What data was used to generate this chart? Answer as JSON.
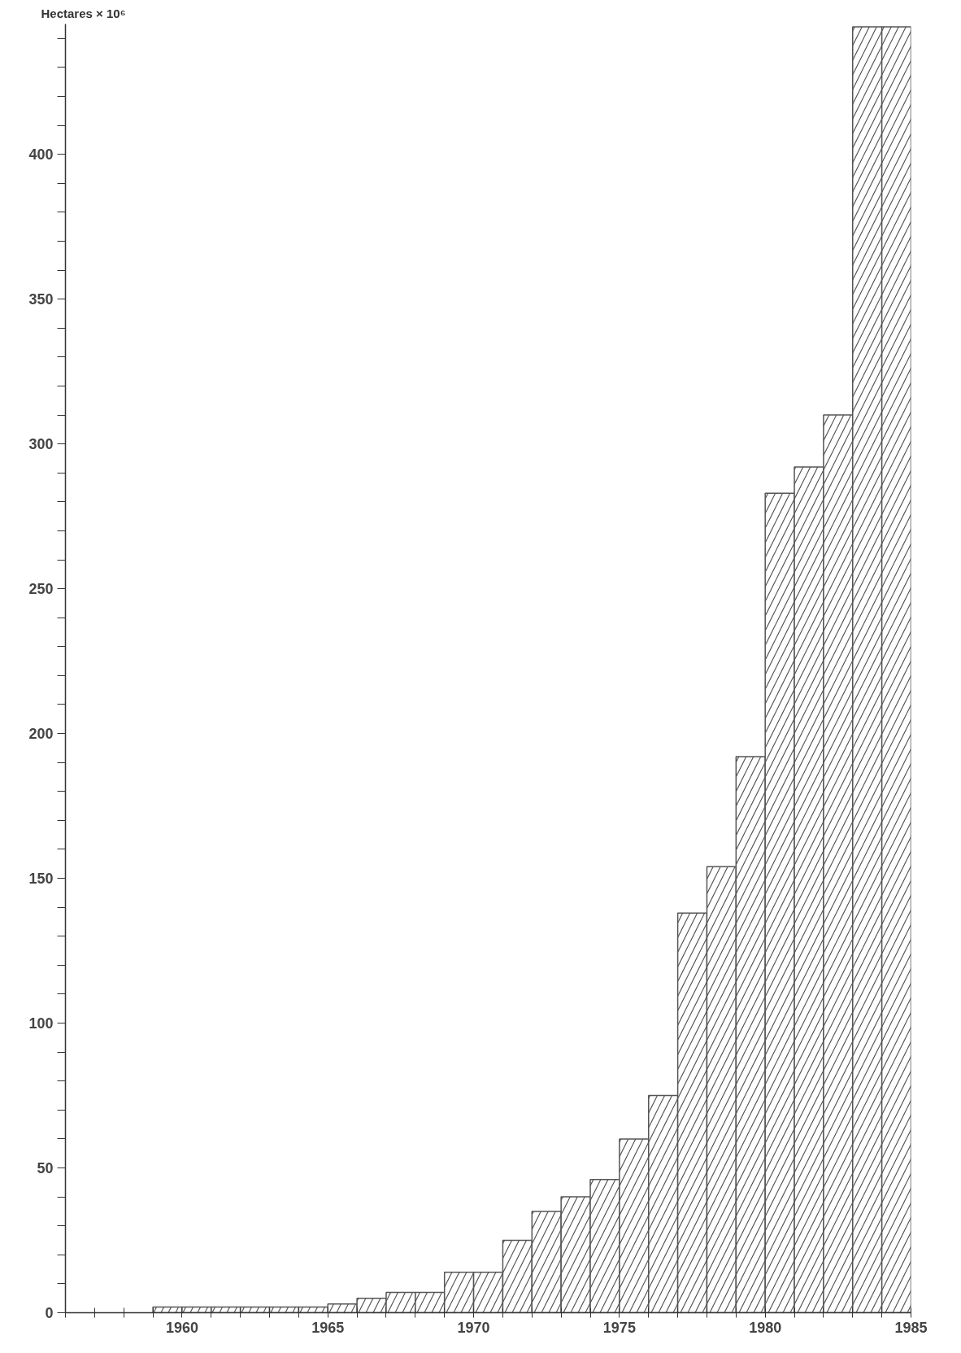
{
  "chart_data": {
    "type": "histogram",
    "ylabel": "Hectares × 10⁶",
    "bins": [
      1959,
      1960,
      1961,
      1962,
      1963,
      1964,
      1965,
      1966,
      1967,
      1968,
      1969,
      1970,
      1971,
      1972,
      1973,
      1974,
      1975,
      1976,
      1977,
      1978,
      1979,
      1980,
      1981,
      1982,
      1983,
      1984,
      1985
    ],
    "values": [
      2,
      2,
      2,
      2,
      2,
      2,
      3,
      5,
      7,
      7,
      14,
      14,
      25,
      35,
      40,
      46,
      60,
      75,
      138,
      154,
      192,
      283,
      292,
      310,
      444,
      444
    ],
    "color": "#555555",
    "xlim": [
      1956,
      1985
    ],
    "xticks": [
      {
        "value": 1956,
        "label": null
      },
      {
        "value": 1957,
        "label": null
      },
      {
        "value": 1958,
        "label": null
      },
      {
        "value": 1959,
        "label": null
      },
      1960,
      {
        "value": 1961,
        "label": null
      },
      {
        "value": 1962,
        "label": null
      },
      {
        "value": 1963,
        "label": null
      },
      {
        "value": 1964,
        "label": null
      },
      1965,
      {
        "value": 1966,
        "label": null
      },
      {
        "value": 1967,
        "label": null
      },
      {
        "value": 1968,
        "label": null
      },
      {
        "value": 1969,
        "label": null
      },
      1970,
      {
        "value": 1971,
        "label": null
      },
      {
        "value": 1972,
        "label": null
      },
      {
        "value": 1973,
        "label": null
      },
      {
        "value": 1974,
        "label": null
      },
      1975,
      {
        "value": 1976,
        "label": null
      },
      {
        "value": 1977,
        "label": null
      },
      {
        "value": 1978,
        "label": null
      },
      {
        "value": 1979,
        "label": null
      },
      1980,
      {
        "value": 1981,
        "label": null
      },
      {
        "value": 1982,
        "label": null
      },
      {
        "value": 1983,
        "label": null
      },
      {
        "value": 1984,
        "label": null
      },
      1985
    ],
    "ylim": [
      0,
      445
    ],
    "yticks": [
      0,
      {
        "value": 10,
        "label": null
      },
      {
        "value": 20,
        "label": null
      },
      {
        "value": 30,
        "label": null
      },
      {
        "value": 40,
        "label": null
      },
      50,
      {
        "value": 60,
        "label": null
      },
      {
        "value": 70,
        "label": null
      },
      {
        "value": 80,
        "label": null
      },
      {
        "value": 90,
        "label": null
      },
      100,
      {
        "value": 110,
        "label": null
      },
      {
        "value": 120,
        "label": null
      },
      {
        "value": 130,
        "label": null
      },
      {
        "value": 140,
        "label": null
      },
      150,
      {
        "value": 160,
        "label": null
      },
      {
        "value": 170,
        "label": null
      },
      {
        "value": 180,
        "label": null
      },
      {
        "value": 190,
        "label": null
      },
      200,
      {
        "value": 210,
        "label": null
      },
      {
        "value": 220,
        "label": null
      },
      {
        "value": 230,
        "label": null
      },
      {
        "value": 240,
        "label": null
      },
      250,
      {
        "value": 260,
        "label": null
      },
      {
        "value": 270,
        "label": null
      },
      {
        "value": 280,
        "label": null
      },
      {
        "value": 290,
        "label": null
      },
      300,
      {
        "value": 310,
        "label": null
      },
      {
        "value": 320,
        "label": null
      },
      {
        "value": 330,
        "label": null
      },
      {
        "value": 340,
        "label": null
      },
      350,
      {
        "value": 360,
        "label": null
      },
      {
        "value": 370,
        "label": null
      },
      {
        "value": 380,
        "label": null
      },
      {
        "value": 390,
        "label": null
      },
      400,
      {
        "value": 410,
        "label": null
      },
      {
        "value": 420,
        "label": null
      },
      {
        "value": 430,
        "label": null
      },
      {
        "value": 440,
        "label": null
      }
    ],
    "grid": false
  }
}
